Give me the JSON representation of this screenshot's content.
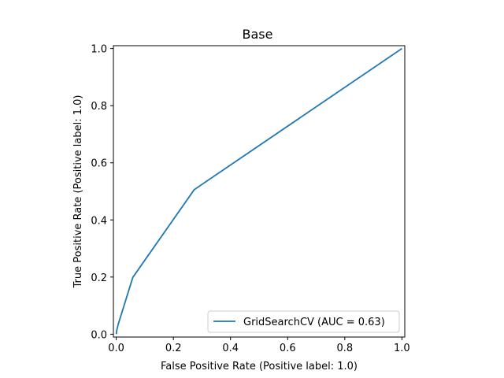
{
  "chart_data": {
    "type": "line",
    "title": "Base",
    "xlabel": "False Positive Rate (Positive label: 1.0)",
    "ylabel": "True Positive Rate (Positive label: 1.0)",
    "xlim": [
      -0.01,
      1.01
    ],
    "ylim": [
      -0.01,
      1.01
    ],
    "xticks": [
      0.0,
      0.2,
      0.4,
      0.6,
      0.8,
      1.0
    ],
    "yticks": [
      0.0,
      0.2,
      0.4,
      0.6,
      0.8,
      1.0
    ],
    "xtick_labels": [
      "0.0",
      "0.2",
      "0.4",
      "0.6",
      "0.8",
      "1.0"
    ],
    "ytick_labels": [
      "0.0",
      "0.2",
      "0.4",
      "0.6",
      "0.8",
      "1.0"
    ],
    "grid": false,
    "legend_position": "lower-right",
    "series": [
      {
        "name": "GridSearchCV (AUC = 0.63)",
        "color": "#1f77b4",
        "x": [
          0.0,
          0.002,
          0.007,
          0.058,
          0.273,
          1.0
        ],
        "y": [
          0.0,
          0.015,
          0.035,
          0.199,
          0.506,
          1.0
        ]
      }
    ]
  }
}
